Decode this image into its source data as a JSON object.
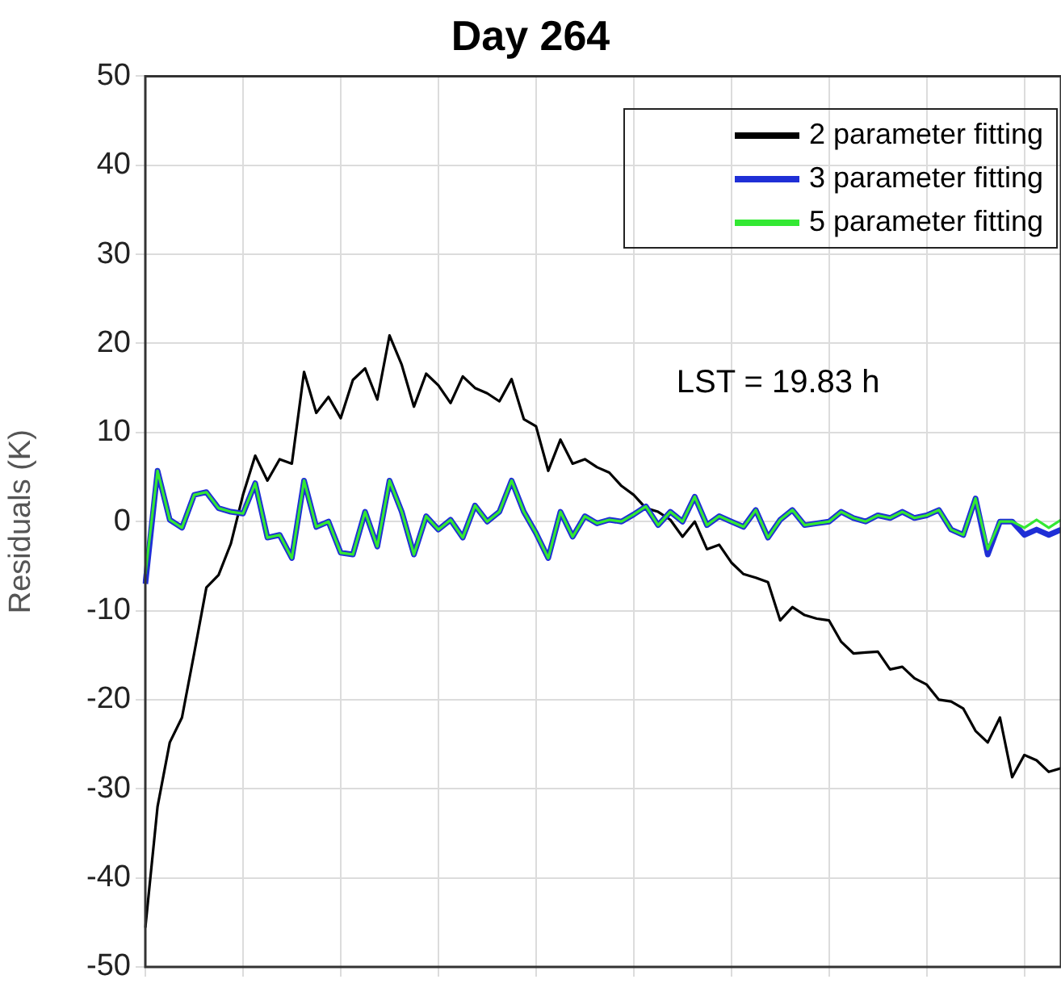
{
  "chart_data": {
    "type": "line",
    "title": "Day 264",
    "ylabel": "Residuals (K)",
    "annotations": [
      "LST = 19.83 h"
    ],
    "categories": [
      null,
      null,
      null,
      null,
      null,
      null,
      null,
      null,
      null,
      null,
      null,
      null,
      null,
      null,
      null,
      null,
      null,
      null,
      null,
      null,
      null,
      null,
      null,
      null,
      null,
      null,
      null,
      null,
      null,
      null,
      null,
      null,
      null,
      null,
      null,
      null,
      null,
      null,
      null,
      null,
      null,
      null,
      null,
      null,
      null,
      null,
      null,
      null,
      null,
      null,
      null,
      null,
      null,
      null,
      null,
      null,
      null,
      null,
      null,
      null,
      null,
      null,
      null,
      null,
      null,
      null,
      null,
      null,
      null,
      null,
      null,
      null,
      null,
      null,
      null,
      null
    ],
    "ylim": [
      -50,
      50
    ],
    "yticks": [
      -50,
      -40,
      -30,
      -20,
      -10,
      0,
      10,
      20,
      30,
      40,
      50
    ],
    "tick_labels": "y",
    "grid": true,
    "legend": "top right",
    "marker": "none",
    "line_style": "solid",
    "series": [
      {
        "name": "2 parameter fitting",
        "color": "#000000",
        "values": [
          -45.6,
          -32,
          -24.8,
          -22,
          -14.8,
          -7.4,
          -6,
          -2.5,
          3,
          7.4,
          4.6,
          7,
          6.5,
          16.8,
          12.2,
          14,
          11.6,
          15.9,
          17.2,
          13.7,
          20.9,
          17.6,
          12.9,
          16.6,
          15.3,
          13.3,
          16.3,
          15,
          14.4,
          13.5,
          16,
          11.5,
          10.7,
          5.7,
          9.2,
          6.5,
          7,
          6.1,
          5.5,
          4,
          3,
          1.5,
          1.1,
          0.2,
          -1.7,
          0,
          -3.1,
          -2.6,
          -4.6,
          -5.9,
          -6.3,
          -6.8,
          -11.1,
          -9.6,
          -10.5,
          -10.9,
          -11.1,
          -13.5,
          -14.8,
          -14.7,
          -14.6,
          -16.6,
          -16.3,
          -17.6,
          -18.3,
          -20,
          -20.2,
          -21,
          -23.5,
          -24.8,
          -22,
          -28.7,
          -26.2,
          -26.8,
          -28.1,
          -27.7
        ]
      },
      {
        "name": "3 parameter fitting",
        "color": "#1f2fd6",
        "values": [
          -7,
          5.7,
          0.2,
          -0.7,
          3,
          3.3,
          1.5,
          1.1,
          0.9,
          4.3,
          -1.8,
          -1.5,
          -4.1,
          4.6,
          -0.6,
          0,
          -3.5,
          -3.7,
          1.1,
          -2.8,
          4.6,
          1.1,
          -3.7,
          0.6,
          -0.9,
          0.2,
          -1.8,
          1.8,
          0,
          1.1,
          4.6,
          1.1,
          -1.3,
          -4.1,
          1.1,
          -1.7,
          0.6,
          -0.2,
          0.2,
          0,
          0.8,
          1.7,
          -0.4,
          1.1,
          0,
          2.8,
          -0.4,
          0.6,
          0,
          -0.6,
          1.3,
          -1.8,
          0.2,
          1.3,
          -0.4,
          -0.2,
          0,
          1.1,
          0.4,
          0,
          0.7,
          0.4,
          1.1,
          0.4,
          0.7,
          1.3,
          -0.9,
          -1.5,
          2.6,
          -3.7,
          0,
          0,
          -1.5,
          -0.9,
          -1.5,
          -0.9
        ]
      },
      {
        "name": "5 parameter fitting",
        "color": "#33e833",
        "values": [
          -5.9,
          5.7,
          0.2,
          -0.7,
          3,
          3.3,
          1.5,
          1.1,
          0.9,
          4.3,
          -1.8,
          -1.5,
          -4.1,
          4.6,
          -0.6,
          0,
          -3.5,
          -3.7,
          1.1,
          -2.8,
          4.6,
          1.1,
          -3.7,
          0.6,
          -0.9,
          0.2,
          -1.8,
          1.8,
          0,
          1.1,
          4.6,
          1.1,
          -1.3,
          -4.1,
          1.1,
          -1.7,
          0.6,
          -0.2,
          0.2,
          0,
          0.8,
          1.7,
          -0.4,
          1.1,
          0,
          2.8,
          -0.4,
          0.6,
          0,
          -0.6,
          1.3,
          -1.8,
          0.2,
          1.3,
          -0.4,
          -0.2,
          0,
          1.1,
          0.4,
          0,
          0.7,
          0.4,
          1.1,
          0.4,
          0.7,
          1.3,
          -0.9,
          -1.5,
          2.6,
          -3.1,
          0,
          0,
          -0.7,
          0.2,
          -0.7,
          0.2
        ]
      }
    ]
  }
}
